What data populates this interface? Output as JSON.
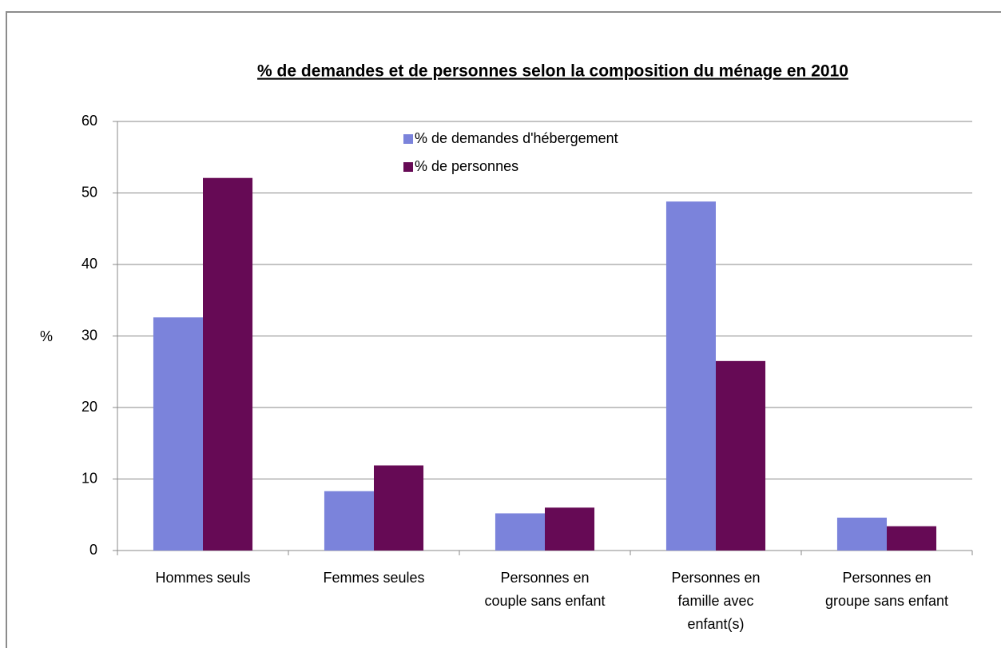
{
  "chart_data": {
    "type": "bar",
    "title": "% de demandes et de personnes selon la composition du ménage en 2010",
    "y_label": "%",
    "categories": [
      "Hommes seuls",
      "Femmes seules",
      "Personnes en\ncouple sans enfant",
      "Personnes en\nfamille avec\nenfant(s)",
      "Personnes en\ngroupe sans enfant"
    ],
    "series": [
      {
        "name": "% de demandes d'hébergement",
        "color": "#7b83db",
        "values": [
          32.6,
          8.3,
          5.2,
          48.8,
          4.6
        ]
      },
      {
        "name": "% de personnes",
        "color": "#660a55",
        "values": [
          52.1,
          11.9,
          6.0,
          26.5,
          3.4
        ]
      }
    ],
    "ylim": [
      0,
      60
    ],
    "yticks": [
      0,
      10,
      20,
      30,
      40,
      50,
      60
    ],
    "grid": true,
    "legend": "top"
  }
}
